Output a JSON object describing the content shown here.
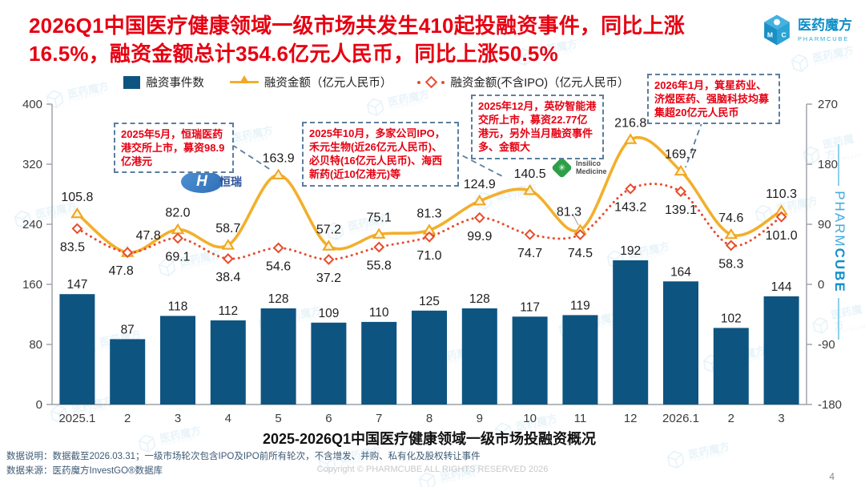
{
  "header": {
    "title": "2026Q1中国医疗健康领域一级市场共发生410起投融资事件，同比上涨16.5%，融资金额总计354.6亿元人民币，同比上涨50.5%",
    "logo": {
      "name": "医药魔方",
      "sub": "PHARMCUBE"
    }
  },
  "legend": [
    {
      "label": "融资事件数",
      "color": "#0e5480"
    },
    {
      "label": "融资金额（亿元人民币）",
      "color": "#f3af2b"
    },
    {
      "label": "融资金额(不含IPO)（亿元人民币）",
      "color": "#e74c2c"
    }
  ],
  "chart_data": {
    "type": "bar",
    "subtype": "combo-bar-line",
    "categories": [
      "2025.1",
      "2",
      "3",
      "4",
      "5",
      "6",
      "7",
      "8",
      "9",
      "10",
      "11",
      "12",
      "2026.1",
      "2",
      "3"
    ],
    "series": [
      {
        "name": "融资事件数",
        "type": "bar",
        "axis": "left",
        "color": "#0e5480",
        "values": [
          147,
          87,
          118,
          112,
          128,
          109,
          110,
          125,
          128,
          117,
          119,
          192,
          164,
          102,
          144
        ]
      },
      {
        "name": "融资金额（亿元人民币）",
        "type": "line",
        "axis": "right",
        "color": "#f3af2b",
        "values": [
          105.8,
          47.8,
          82.0,
          58.7,
          163.9,
          57.2,
          75.1,
          81.3,
          124.9,
          140.5,
          81.3,
          216.8,
          169.7,
          74.6,
          110.3
        ]
      },
      {
        "name": "融资金额(不含IPO)（亿元人民币）",
        "type": "line-dotted",
        "axis": "right",
        "color": "#e74c2c",
        "values": [
          83.5,
          47.8,
          69.1,
          38.4,
          54.6,
          37.2,
          55.8,
          71.0,
          99.9,
          74.7,
          74.5,
          143.2,
          139.1,
          58.3,
          101.0
        ]
      }
    ],
    "left_axis": {
      "min": 0,
      "max": 400,
      "ticks": [
        0,
        80,
        160,
        240,
        320,
        400
      ]
    },
    "right_axis": {
      "min": -180,
      "max": 270,
      "ticks": [
        -180,
        -90,
        0,
        90,
        180,
        270
      ]
    },
    "grid": false,
    "legend_position": "top",
    "caption": "2025-2026Q1中国医疗健康领域一级市场投融资概况"
  },
  "annotations": [
    {
      "text": "2025年5月，恒瑞医药港交所上市，募资98.9亿港元"
    },
    {
      "text": "2025年10月，多家公司IPO，禾元生物(近26亿元人民币)、必贝特(16亿元人民币)、海西新药(近10亿港元)等"
    },
    {
      "text": "2025年12月，英矽智能港交所上市，募资22.77亿港元，另外当月融资事件多、金额大"
    },
    {
      "text": "2026年1月，箕星药业、济煜医药、强脑科技均募集超20亿元人民币"
    }
  ],
  "inline_logos": {
    "hengrui_initial": "H",
    "hengrui_label": "恒瑞",
    "insilico_label": "Insilico Medicine"
  },
  "side_brand": {
    "pharm": "PHARM",
    "cube": "CUBE"
  },
  "watermark": {
    "text": "医药魔方",
    "sub": "PHARMCUBE"
  },
  "footer": {
    "note": "数据说明：数据截至2026.03.31；一级市场轮次包含IPO及IPO前所有轮次，不含增发、并购、私有化及股权转让事件",
    "source": "数据来源：医药魔方InvestGO®数据库",
    "copyright": "Copyright © PHARMCUBE ALL RIGHTS RESERVED 2026",
    "page_number": "4"
  }
}
